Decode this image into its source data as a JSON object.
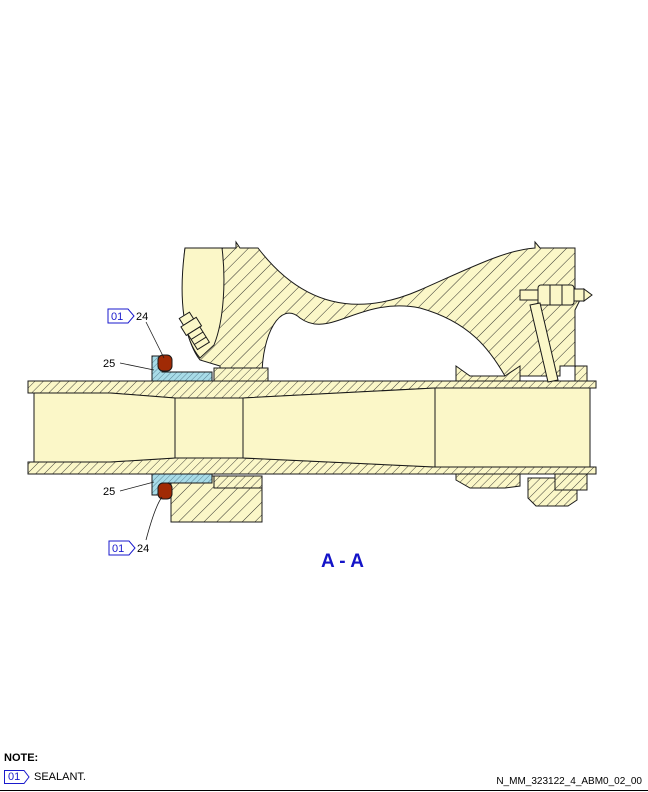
{
  "colors": {
    "part_fill": "#fbf7c8",
    "outline": "#1a1a1a",
    "seal_fill": "#a02a05",
    "washer_fill": "#a8dce8",
    "accent": "#1414c8"
  },
  "section_label": "A - A",
  "callouts": {
    "top_tag": "01",
    "top_item": "24",
    "top_washer": "25",
    "bottom_washer": "25",
    "bottom_tag": "01",
    "bottom_item": "24"
  },
  "note": {
    "title": "NOTE:",
    "tag": "01",
    "text": "SEALANT."
  },
  "doc_id": "N_MM_323122_4_ABM0_02_00"
}
